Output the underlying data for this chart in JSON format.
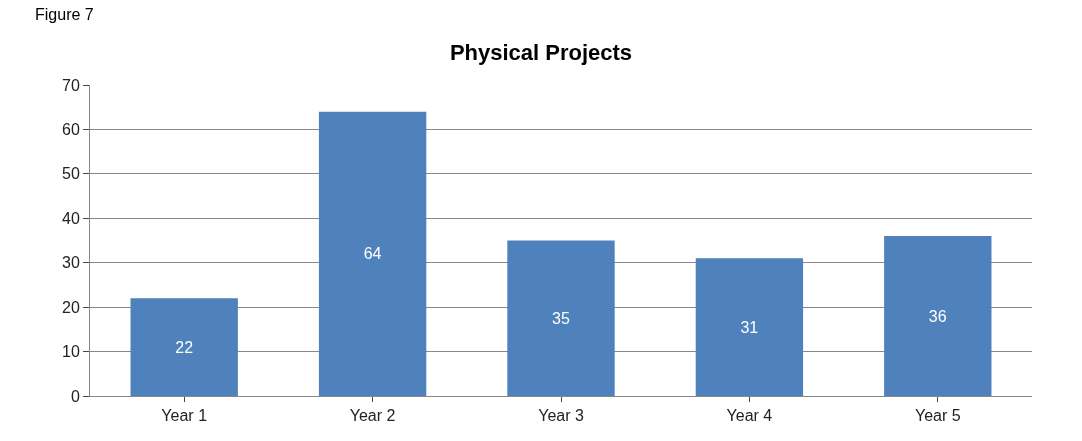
{
  "chart_data": {
    "type": "bar",
    "title": "Physical Projects",
    "annotations": [
      "Figure 7"
    ],
    "categories": [
      "Year 1",
      "Year 2",
      "Year 3",
      "Year 4",
      "Year 5"
    ],
    "values": [
      22,
      64,
      35,
      31,
      36
    ],
    "color": "#4f81bd",
    "ylim": [
      0,
      70
    ],
    "yticks": [
      0,
      10,
      20,
      30,
      40,
      50,
      60,
      70
    ],
    "grid": "y",
    "data_labels": true,
    "legend": false
  }
}
